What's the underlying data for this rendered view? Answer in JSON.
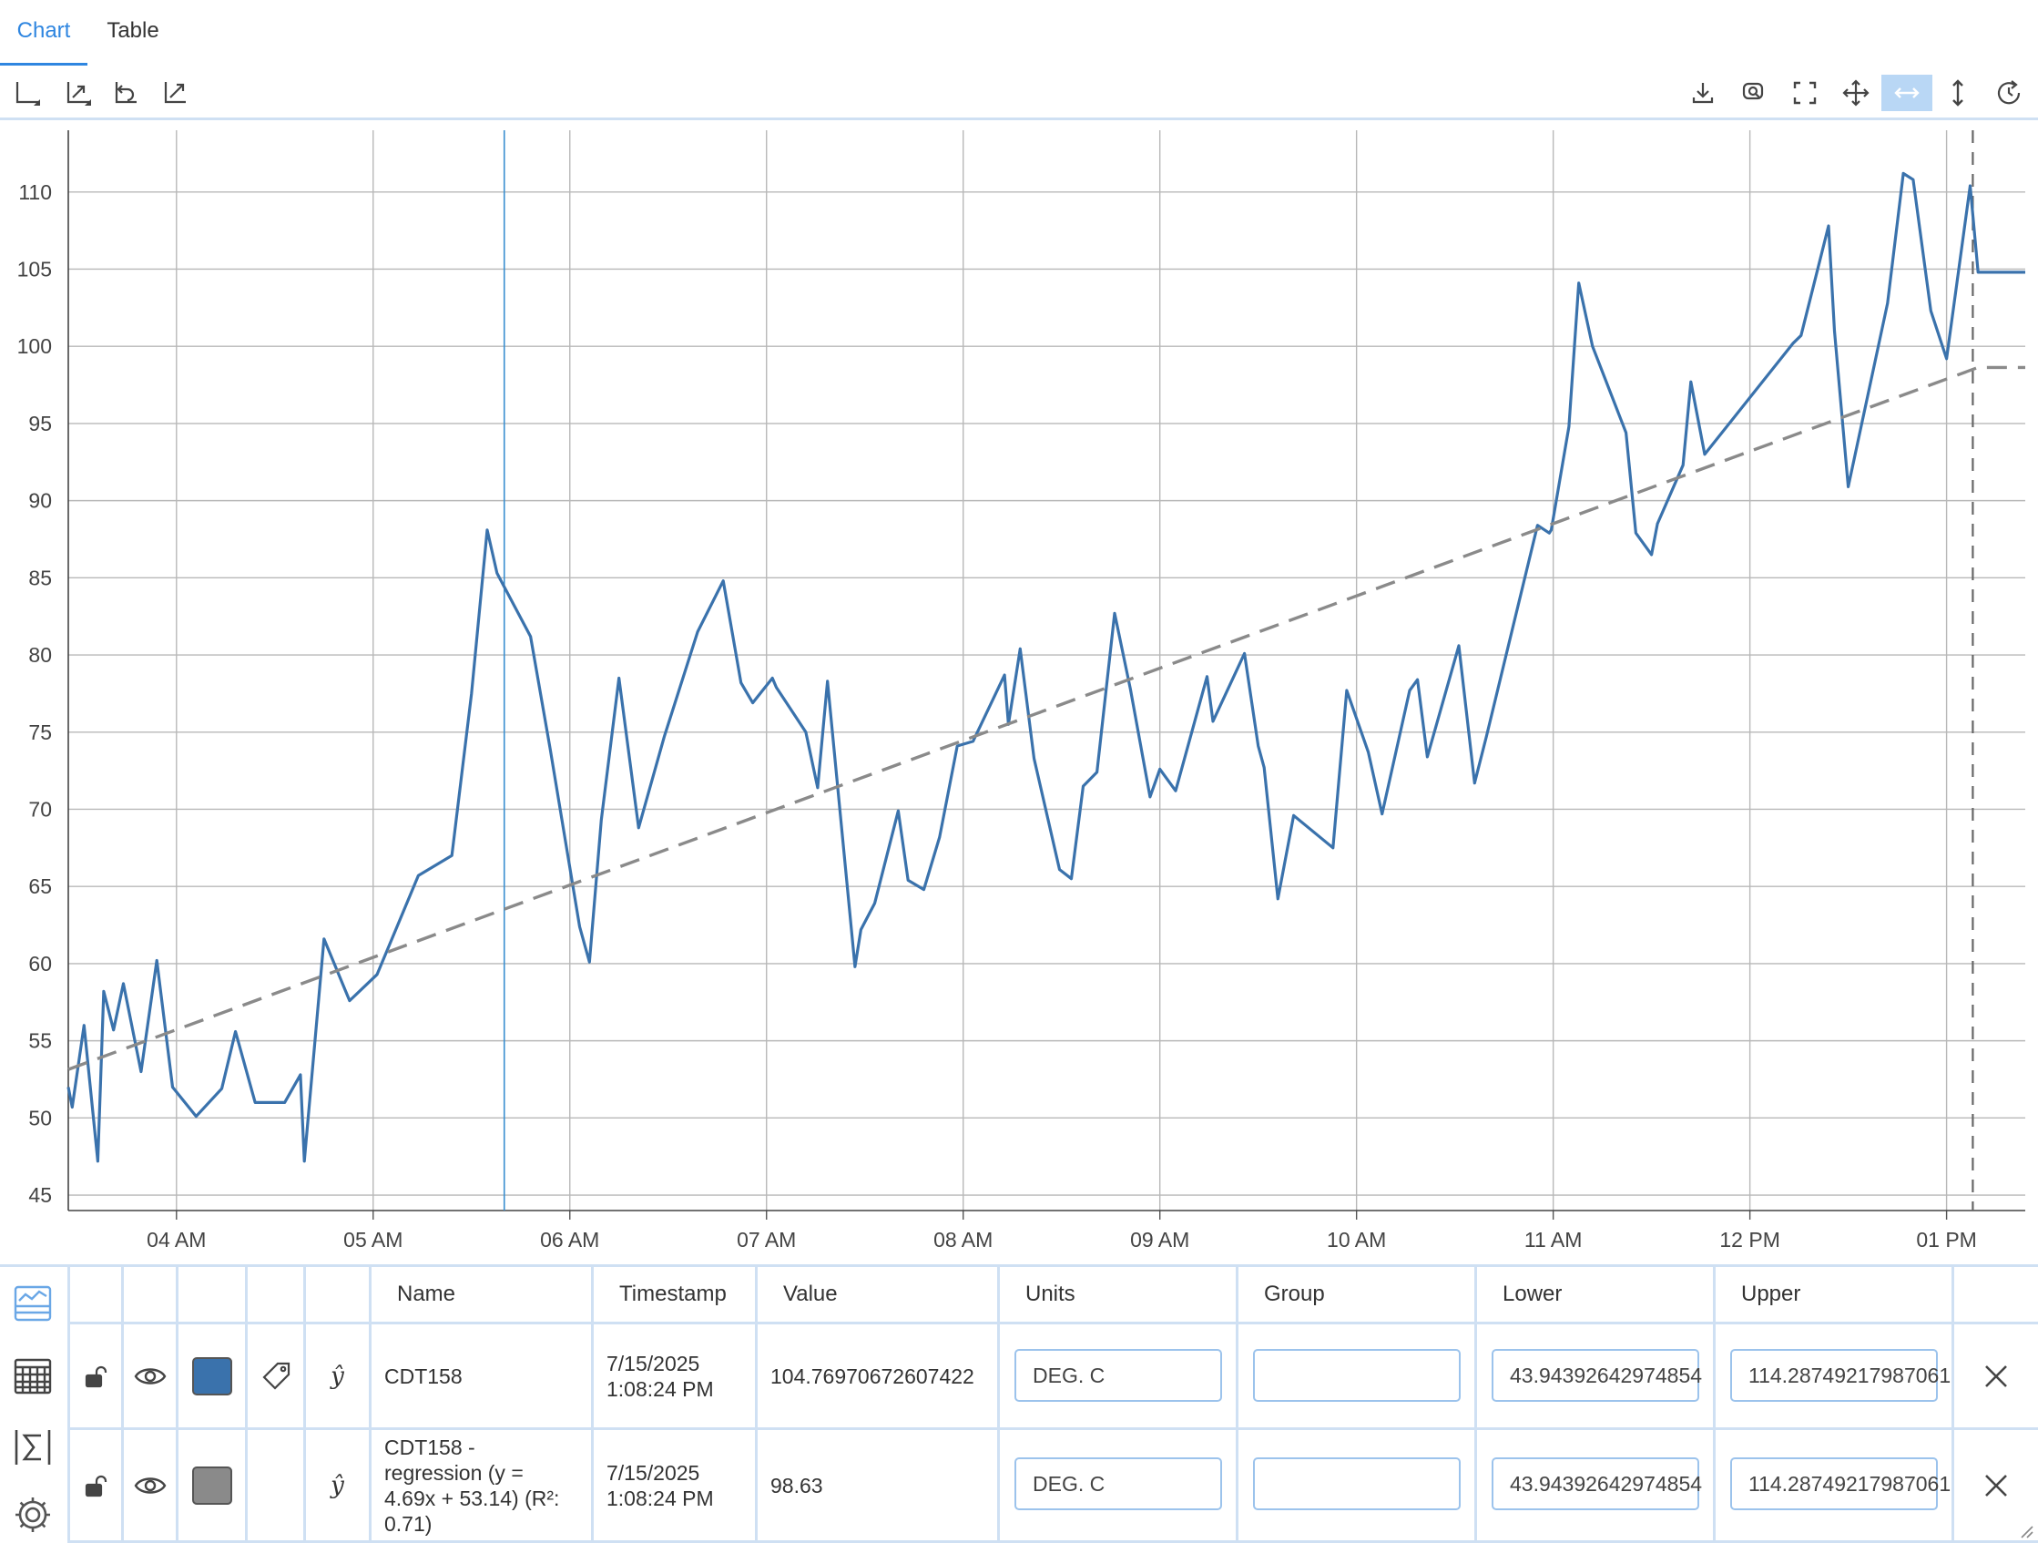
{
  "tabs": [
    {
      "label": "Chart",
      "active": true
    },
    {
      "label": "Table",
      "active": false
    }
  ],
  "toolbar": {
    "left_icons": [
      "axis-select-icon",
      "zoom-box-icon",
      "undo-zoom-icon",
      "autoscale-icon"
    ],
    "right_icons": [
      "download-icon",
      "zoom-icon",
      "fullscreen-icon",
      "pan-icon",
      "pan-horizontal-icon",
      "pan-vertical-icon",
      "reset-icon"
    ],
    "selected": "pan-horizontal-icon"
  },
  "colors": {
    "accent": "#2f86e0",
    "series": "#3a72ac",
    "regression": "#8a8a8a",
    "border": "#cfe0f3",
    "grid": "#b8b8b8"
  },
  "chart_data": {
    "type": "line",
    "x_axis": {
      "ticks": [
        "04 AM",
        "05 AM",
        "06 AM",
        "07 AM",
        "08 AM",
        "09 AM",
        "10 AM",
        "11 AM",
        "12 PM",
        "01 PM"
      ],
      "range_hours": [
        3.45,
        13.4
      ]
    },
    "y_axis": {
      "ticks": [
        45,
        50,
        55,
        60,
        65,
        70,
        75,
        80,
        85,
        90,
        95,
        100,
        105,
        110
      ],
      "range": [
        44,
        114
      ]
    },
    "grid": true,
    "cursor_time": "5:40 AM",
    "current_time": "1:08 PM",
    "series": [
      {
        "name": "CDT158",
        "style": "solid",
        "x_hours": [
          3.45,
          3.47,
          3.53,
          3.6,
          3.63,
          3.68,
          3.73,
          3.82,
          3.9,
          3.98,
          4.1,
          4.23,
          4.3,
          4.4,
          4.55,
          4.63,
          4.65,
          4.75,
          4.88,
          5.02,
          5.23,
          5.4,
          5.5,
          5.58,
          5.63,
          5.8,
          5.9,
          6.05,
          6.1,
          6.16,
          6.25,
          6.35,
          6.48,
          6.65,
          6.78,
          6.87,
          6.93,
          7.03,
          7.05,
          7.2,
          7.26,
          7.31,
          7.45,
          7.48,
          7.55,
          7.67,
          7.72,
          7.8,
          7.88,
          7.97,
          8.05,
          8.21,
          8.23,
          8.29,
          8.36,
          8.49,
          8.55,
          8.61,
          8.68,
          8.77,
          8.85,
          8.95,
          9.0,
          9.08,
          9.24,
          9.27,
          9.43,
          9.5,
          9.53,
          9.6,
          9.68,
          9.88,
          9.95,
          10.06,
          10.13,
          10.27,
          10.31,
          10.36,
          10.52,
          10.6,
          10.66,
          10.92,
          10.98,
          10.99,
          11.08,
          11.13,
          11.2,
          11.37,
          11.42,
          11.5,
          11.53,
          11.66,
          11.7,
          11.77,
          12.22,
          12.26,
          12.4,
          12.43,
          12.5,
          12.7,
          12.78,
          12.83,
          12.92,
          13.0,
          13.12,
          13.16,
          13.4
        ],
        "values": [
          52.0,
          50.7,
          56.0,
          47.2,
          58.2,
          55.7,
          58.7,
          53.0,
          60.2,
          52.0,
          50.1,
          51.9,
          55.6,
          51.0,
          51.0,
          52.8,
          47.2,
          61.6,
          57.6,
          59.3,
          65.7,
          67.0,
          77.5,
          88.1,
          85.3,
          81.2,
          73.9,
          62.4,
          60.1,
          69.3,
          78.5,
          68.8,
          74.7,
          81.5,
          84.8,
          78.2,
          76.9,
          78.5,
          77.9,
          75.0,
          71.4,
          78.3,
          59.8,
          62.2,
          63.9,
          69.9,
          65.4,
          64.8,
          68.2,
          74.1,
          74.4,
          78.7,
          75.5,
          80.4,
          73.3,
          66.1,
          65.5,
          71.5,
          72.4,
          82.7,
          77.8,
          70.8,
          72.6,
          71.2,
          78.6,
          75.7,
          80.1,
          74.1,
          72.7,
          64.2,
          69.6,
          67.5,
          77.7,
          73.7,
          69.7,
          77.7,
          78.4,
          73.4,
          80.6,
          71.7,
          74.7,
          88.4,
          87.9,
          88.1,
          94.8,
          104.1,
          100.0,
          94.4,
          87.9,
          86.5,
          88.5,
          92.3,
          97.7,
          93.0,
          100.2,
          100.7,
          107.8,
          101.0,
          90.9,
          102.8,
          111.2,
          110.8,
          102.3,
          99.2,
          110.4,
          104.8,
          104.8
        ]
      },
      {
        "name": "CDT158 - regression (y = 4.69x + 53.14) (R²: 0.71)",
        "style": "dashed",
        "x_hours": [
          3.45,
          13.16,
          13.4
        ],
        "values": [
          53.14,
          98.63,
          98.63
        ]
      }
    ]
  },
  "legend": {
    "headers": [
      "Name",
      "Timestamp",
      "Value",
      "Units",
      "Group",
      "Lower",
      "Upper"
    ],
    "sidebar_icons": [
      "trend-chart-icon",
      "table-grid-icon",
      "sigma-icon",
      "settings-gear-icon"
    ],
    "rows": [
      {
        "name": "CDT158",
        "timestamp_date": "7/15/2025",
        "timestamp_time": "1:08:24 PM",
        "value": "104.76970672607422",
        "units": "DEG. C",
        "group": "",
        "lower": "43.94392642974854",
        "upper": "114.28749217987061",
        "color": "#3a72ac",
        "has_tag": true
      },
      {
        "name": "CDT158 - regression (y = 4.69x + 53.14) (R²: 0.71)",
        "name_lines": [
          "CDT158 -",
          "regression (y =",
          "4.69x + 53.14) (R²:",
          "0.71)"
        ],
        "timestamp_date": "7/15/2025",
        "timestamp_time": "1:08:24 PM",
        "value": "98.63",
        "units": "DEG. C",
        "group": "",
        "lower": "43.94392642974854",
        "upper": "114.28749217987061",
        "color": "#8a8a8a",
        "has_tag": false
      }
    ]
  }
}
